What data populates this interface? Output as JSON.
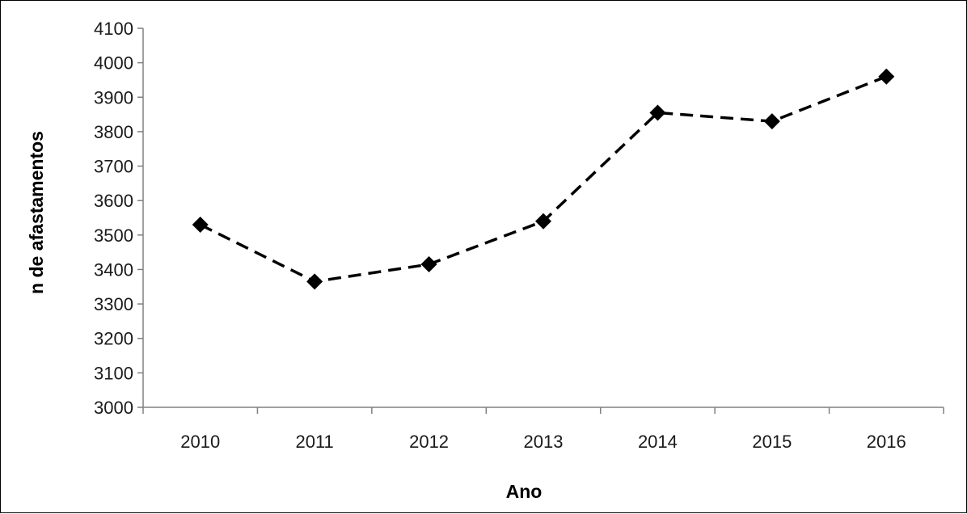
{
  "chart_data": {
    "type": "line",
    "title": "",
    "xlabel": "Ano",
    "ylabel": "n de afastamentos",
    "categories": [
      "2010",
      "2011",
      "2012",
      "2013",
      "2014",
      "2015",
      "2016"
    ],
    "series": [
      {
        "values": [
          3530,
          3365,
          3415,
          3540,
          3855,
          3830,
          3960
        ],
        "line_style": "dashed",
        "marker": "diamond",
        "color": "#000000"
      }
    ],
    "ylim": [
      3000,
      4100
    ],
    "yticks": [
      "3000",
      "3100",
      "3200",
      "3300",
      "3400",
      "3500",
      "3600",
      "3700",
      "3800",
      "3900",
      "4000",
      "4100"
    ],
    "grid": false,
    "legend": "none"
  }
}
